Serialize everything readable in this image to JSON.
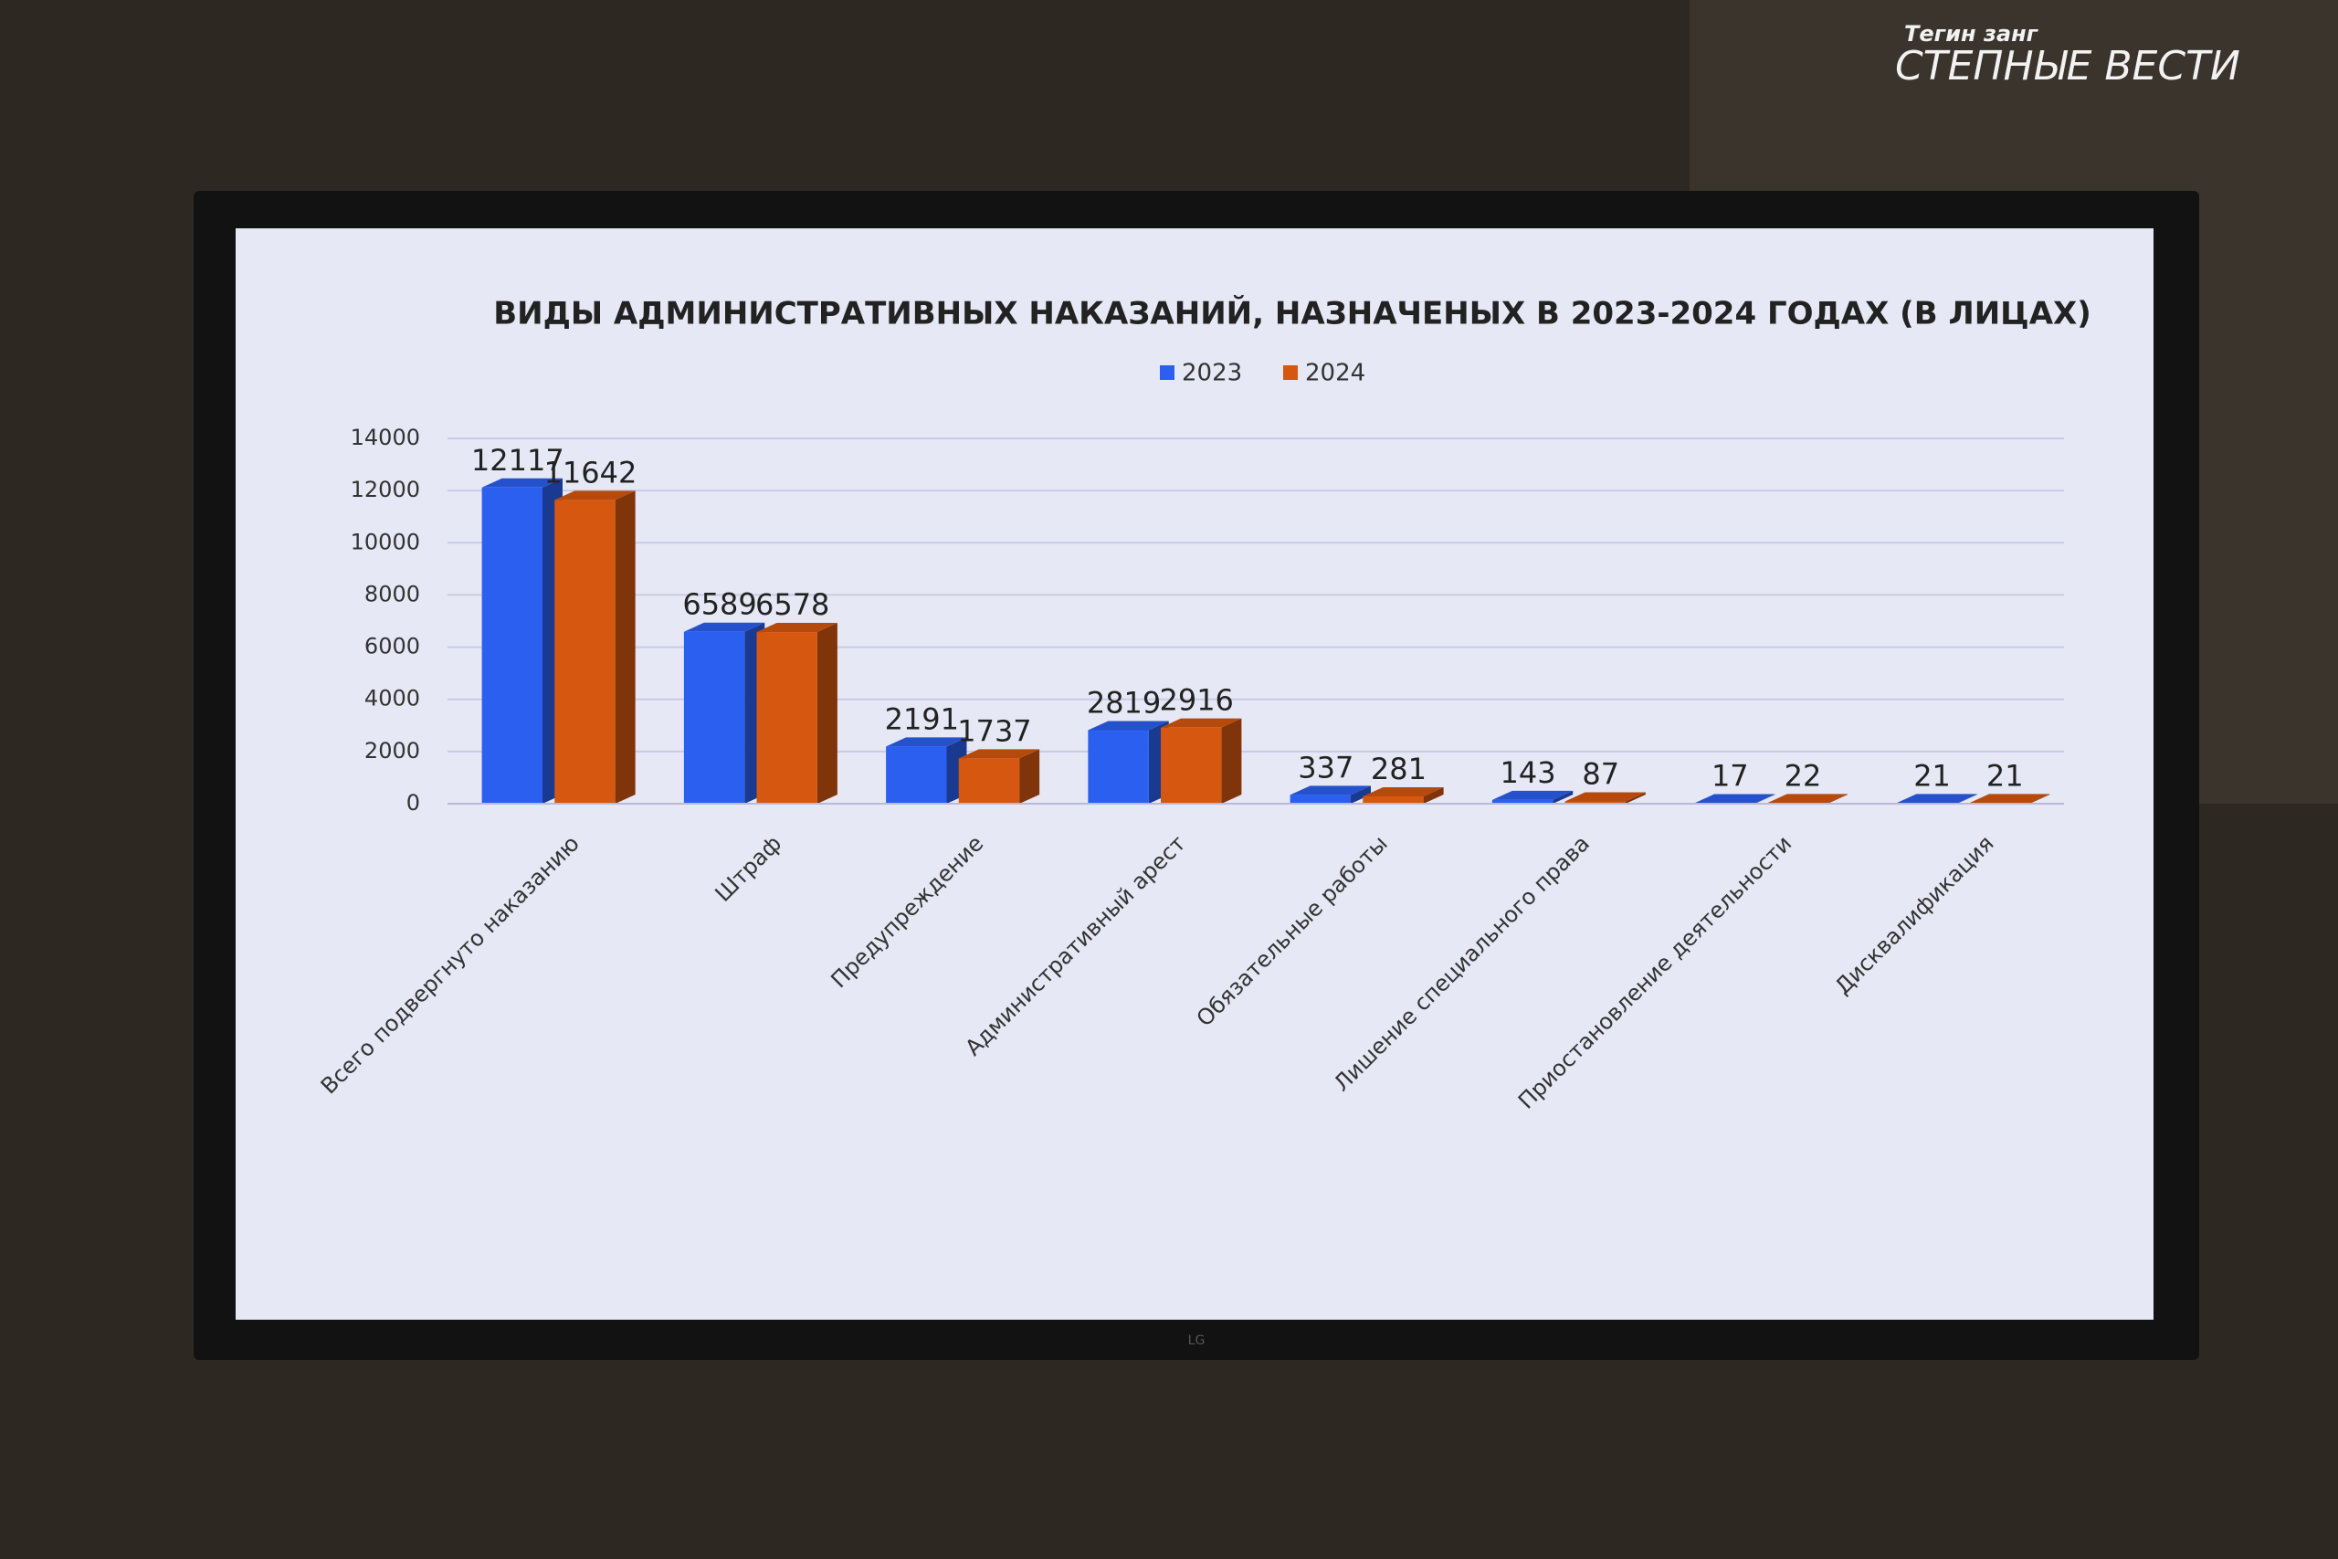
{
  "logo": {
    "subtitle": "Тегин занг",
    "title": "СТЕПНЫЕ ВЕСТИ"
  },
  "tv_brand": "LG",
  "chart_data": {
    "type": "bar",
    "title": "ВИДЫ АДМИНИСТРАТИВНЫХ НАКАЗАНИЙ, НАЗНАЧЕНЫХ В 2023-2024 ГОДАХ (В ЛИЦАХ)",
    "categories": [
      "Всего подвергнуто наказанию",
      "Штраф",
      "Предупреждение",
      "Административный арест",
      "Обязательные работы",
      "Лишение специального права",
      "Приостановление деятельности",
      "Дисквалификация"
    ],
    "series": [
      {
        "name": "2023",
        "color": "#2b5ff0",
        "values": [
          12117,
          6589,
          2191,
          2819,
          337,
          143,
          17,
          21
        ]
      },
      {
        "name": "2024",
        "color": "#d6570f",
        "values": [
          11642,
          6578,
          1737,
          2916,
          281,
          87,
          22,
          21
        ]
      }
    ],
    "ylim": [
      0,
      14000
    ],
    "yticks": [
      0,
      2000,
      4000,
      6000,
      8000,
      10000,
      12000,
      14000
    ],
    "grid": true,
    "legend": "top"
  }
}
